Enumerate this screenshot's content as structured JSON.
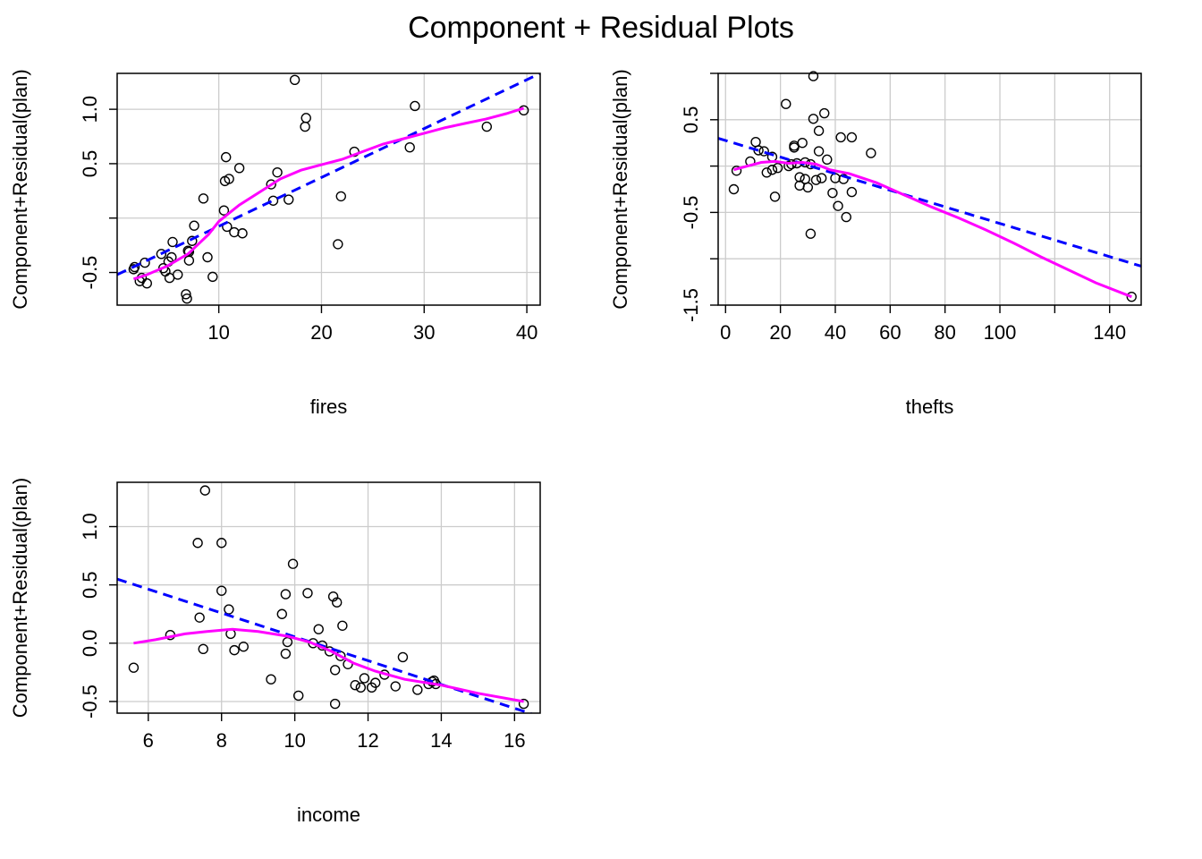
{
  "title": "Component + Residual Plots",
  "colors": {
    "points": "#000000",
    "fit_line": "#0000FF",
    "smooth_line": "#FF00FF",
    "grid": "#CCCCCC",
    "frame": "#000000"
  },
  "chart_data": [
    {
      "type": "scatter",
      "xlabel": "fires",
      "ylabel": "Component+Residual(plan)",
      "xlim": [
        0.1,
        41.3
      ],
      "ylim": [
        -0.8,
        1.33
      ],
      "x_ticks": [
        10,
        20,
        30,
        40
      ],
      "x_tick_labels": [
        "10",
        "20",
        "30",
        "40"
      ],
      "y_ticks": [
        -0.5,
        0.0,
        0.5,
        1.0
      ],
      "y_tick_labels": [
        "-0.5",
        "",
        "0.5",
        "1.0"
      ],
      "x_grid": [
        10,
        20,
        30,
        40
      ],
      "y_grid": [
        -0.5,
        0.0,
        0.5,
        1.0
      ],
      "points": [
        [
          1.7,
          -0.47
        ],
        [
          1.8,
          -0.45
        ],
        [
          2.3,
          -0.58
        ],
        [
          2.5,
          -0.55
        ],
        [
          2.8,
          -0.41
        ],
        [
          3.0,
          -0.6
        ],
        [
          4.4,
          -0.33
        ],
        [
          4.6,
          -0.46
        ],
        [
          4.8,
          -0.49
        ],
        [
          5.1,
          -0.4
        ],
        [
          5.2,
          -0.55
        ],
        [
          5.4,
          -0.36
        ],
        [
          5.5,
          -0.22
        ],
        [
          6.0,
          -0.52
        ],
        [
          6.8,
          -0.7
        ],
        [
          6.9,
          -0.74
        ],
        [
          7.0,
          -0.3
        ],
        [
          7.1,
          -0.31
        ],
        [
          7.1,
          -0.39
        ],
        [
          7.4,
          -0.21
        ],
        [
          7.6,
          -0.07
        ],
        [
          8.5,
          0.18
        ],
        [
          8.9,
          -0.36
        ],
        [
          9.4,
          -0.54
        ],
        [
          10.5,
          0.07
        ],
        [
          10.6,
          0.34
        ],
        [
          10.7,
          0.56
        ],
        [
          10.8,
          -0.08
        ],
        [
          11.0,
          0.36
        ],
        [
          11.5,
          -0.13
        ],
        [
          12.0,
          0.46
        ],
        [
          12.3,
          -0.14
        ],
        [
          15.1,
          0.31
        ],
        [
          15.3,
          0.16
        ],
        [
          15.7,
          0.42
        ],
        [
          16.8,
          0.17
        ],
        [
          17.4,
          1.27
        ],
        [
          18.4,
          0.84
        ],
        [
          18.5,
          0.92
        ],
        [
          21.6,
          -0.24
        ],
        [
          21.9,
          0.2
        ],
        [
          23.2,
          0.61
        ],
        [
          28.6,
          0.65
        ],
        [
          29.1,
          1.03
        ],
        [
          36.1,
          0.84
        ],
        [
          39.7,
          0.99
        ]
      ],
      "fit_line": {
        "x": [
          0.1,
          41.3
        ],
        "y": [
          -0.52,
          1.33
        ]
      },
      "smooth_line": {
        "x": [
          1.7,
          3,
          5,
          7,
          9,
          10,
          12,
          14,
          16,
          18,
          20,
          22,
          24,
          26,
          28,
          30,
          32,
          34,
          36,
          38,
          39.7
        ],
        "y": [
          -0.56,
          -0.52,
          -0.44,
          -0.33,
          -0.15,
          -0.03,
          0.12,
          0.24,
          0.36,
          0.44,
          0.49,
          0.54,
          0.61,
          0.68,
          0.73,
          0.78,
          0.83,
          0.87,
          0.91,
          0.96,
          1.01
        ]
      }
    },
    {
      "type": "scatter",
      "xlabel": "thefts",
      "ylabel": "Component+Residual(plan)",
      "xlim": [
        -2.7,
        151.5
      ],
      "ylim": [
        -1.5,
        1.0
      ],
      "x_ticks": [
        0,
        20,
        40,
        60,
        80,
        100,
        120,
        140
      ],
      "x_tick_labels": [
        "0",
        "20",
        "40",
        "60",
        "80",
        "100",
        "",
        "140"
      ],
      "y_ticks": [
        -1.5,
        -1.0,
        -0.5,
        0.0,
        0.5,
        1.0
      ],
      "y_tick_labels": [
        "-1.5",
        "",
        "-0.5",
        "",
        "0.5",
        ""
      ],
      "x_grid": [
        0,
        20,
        40,
        60,
        80,
        100,
        120,
        140
      ],
      "y_grid": [
        -1.5,
        -1.0,
        -0.5,
        0.0,
        0.5,
        1.0
      ],
      "points": [
        [
          3,
          -0.25
        ],
        [
          4,
          -0.05
        ],
        [
          9,
          0.05
        ],
        [
          11,
          0.26
        ],
        [
          12,
          0.17
        ],
        [
          14,
          0.16
        ],
        [
          15,
          -0.07
        ],
        [
          17,
          0.1
        ],
        [
          17,
          -0.04
        ],
        [
          18,
          -0.33
        ],
        [
          19,
          -0.02
        ],
        [
          22,
          0.67
        ],
        [
          23,
          0.0
        ],
        [
          24,
          0.02
        ],
        [
          25,
          0.2
        ],
        [
          25,
          0.22
        ],
        [
          26,
          0.03
        ],
        [
          27,
          -0.12
        ],
        [
          27,
          -0.21
        ],
        [
          28,
          0.25
        ],
        [
          29,
          0.04
        ],
        [
          29,
          -0.14
        ],
        [
          30,
          -0.23
        ],
        [
          31,
          0.02
        ],
        [
          31,
          -0.73
        ],
        [
          32,
          0.97
        ],
        [
          32,
          0.51
        ],
        [
          33,
          -0.15
        ],
        [
          34,
          0.38
        ],
        [
          34,
          0.16
        ],
        [
          35,
          -0.13
        ],
        [
          36,
          0.57
        ],
        [
          37,
          0.07
        ],
        [
          39,
          -0.29
        ],
        [
          40,
          -0.13
        ],
        [
          41,
          -0.43
        ],
        [
          42,
          0.31
        ],
        [
          43,
          -0.14
        ],
        [
          44,
          -0.55
        ],
        [
          46,
          0.31
        ],
        [
          46,
          -0.28
        ],
        [
          53,
          0.14
        ],
        [
          148,
          -1.41
        ]
      ],
      "fit_line": {
        "x": [
          -2.7,
          151.5
        ],
        "y": [
          0.3,
          -1.08
        ]
      },
      "smooth_line": {
        "x": [
          3,
          8,
          13,
          18,
          23,
          28,
          33,
          38,
          45,
          55,
          65,
          75,
          85,
          95,
          105,
          115,
          125,
          135,
          148
        ],
        "y": [
          -0.04,
          0.0,
          0.04,
          0.05,
          0.03,
          0.04,
          0.02,
          -0.04,
          -0.08,
          -0.18,
          -0.31,
          -0.44,
          -0.56,
          -0.69,
          -0.83,
          -0.98,
          -1.12,
          -1.26,
          -1.41
        ]
      }
    },
    {
      "type": "scatter",
      "xlabel": "income",
      "ylabel": "Component+Residual(plan)",
      "xlim": [
        5.15,
        16.7
      ],
      "ylim": [
        -0.6,
        1.38
      ],
      "x_ticks": [
        6,
        8,
        10,
        12,
        14,
        16
      ],
      "x_tick_labels": [
        "6",
        "8",
        "10",
        "12",
        "14",
        "16"
      ],
      "y_ticks": [
        -0.5,
        0.0,
        0.5,
        1.0
      ],
      "y_tick_labels": [
        "-0.5",
        "0.0",
        "0.5",
        "1.0"
      ],
      "x_grid": [
        6,
        8,
        10,
        12,
        14,
        16
      ],
      "y_grid": [
        -0.5,
        0.0,
        0.5,
        1.0
      ],
      "points": [
        [
          5.6,
          -0.21
        ],
        [
          6.6,
          0.07
        ],
        [
          7.35,
          0.86
        ],
        [
          7.4,
          0.22
        ],
        [
          7.5,
          -0.05
        ],
        [
          7.55,
          1.31
        ],
        [
          8.0,
          0.86
        ],
        [
          8.0,
          0.45
        ],
        [
          8.2,
          0.29
        ],
        [
          8.25,
          0.08
        ],
        [
          8.35,
          -0.06
        ],
        [
          8.6,
          -0.03
        ],
        [
          9.35,
          -0.31
        ],
        [
          9.65,
          0.25
        ],
        [
          9.75,
          0.42
        ],
        [
          9.75,
          -0.09
        ],
        [
          9.8,
          0.01
        ],
        [
          9.95,
          0.68
        ],
        [
          10.1,
          -0.45
        ],
        [
          10.35,
          0.43
        ],
        [
          10.5,
          0.0
        ],
        [
          10.65,
          0.12
        ],
        [
          10.75,
          -0.02
        ],
        [
          10.95,
          -0.07
        ],
        [
          11.05,
          0.4
        ],
        [
          11.1,
          -0.23
        ],
        [
          11.1,
          -0.52
        ],
        [
          11.15,
          0.35
        ],
        [
          11.25,
          -0.11
        ],
        [
          11.3,
          0.15
        ],
        [
          11.45,
          -0.18
        ],
        [
          11.65,
          -0.36
        ],
        [
          11.8,
          -0.38
        ],
        [
          11.9,
          -0.3
        ],
        [
          12.1,
          -0.38
        ],
        [
          12.2,
          -0.34
        ],
        [
          12.45,
          -0.27
        ],
        [
          12.75,
          -0.37
        ],
        [
          12.95,
          -0.12
        ],
        [
          13.35,
          -0.4
        ],
        [
          13.65,
          -0.35
        ],
        [
          13.75,
          -0.33
        ],
        [
          13.8,
          -0.32
        ],
        [
          13.85,
          -0.35
        ],
        [
          16.25,
          -0.52
        ]
      ],
      "fit_line": {
        "x": [
          5.15,
          16.7
        ],
        "y": [
          0.55,
          -0.63
        ]
      },
      "smooth_line": {
        "x": [
          5.6,
          6.2,
          7.0,
          7.6,
          8.3,
          9.0,
          9.8,
          10.4,
          11.0,
          11.6,
          12.2,
          13.0,
          14.0,
          15.0,
          16.25
        ],
        "y": [
          0.0,
          0.03,
          0.08,
          0.1,
          0.12,
          0.1,
          0.06,
          0.01,
          -0.07,
          -0.17,
          -0.24,
          -0.31,
          -0.36,
          -0.43,
          -0.5
        ]
      }
    }
  ]
}
